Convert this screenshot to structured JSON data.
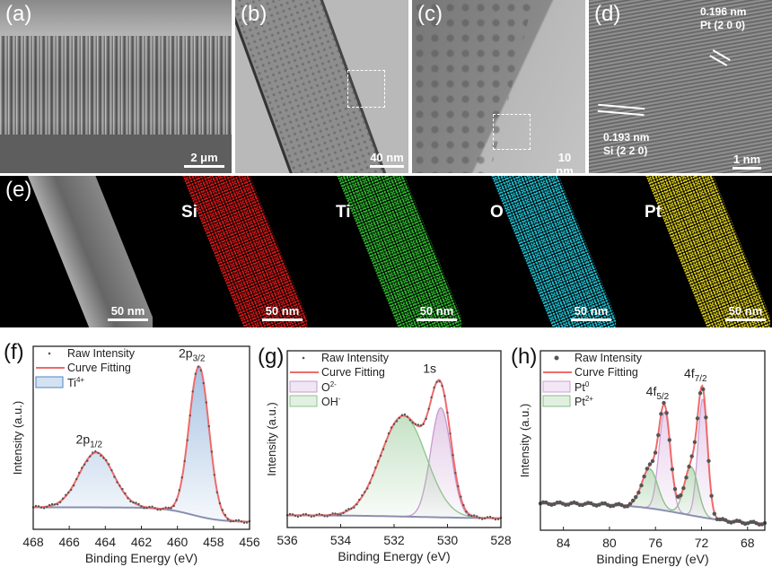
{
  "panels": {
    "a": {
      "label": "(a)",
      "scale": "2 μm"
    },
    "b": {
      "label": "(b)",
      "scale": "40 nm"
    },
    "c": {
      "label": "(c)",
      "scale": "10 nm"
    },
    "d": {
      "label": "(d)",
      "scale": "1 nm",
      "pt_spacing": "0.196 nm",
      "pt_plane": "Pt (2 0 0)",
      "si_spacing": "0.193 nm",
      "si_plane": "Si (2 2 0)"
    },
    "e": {
      "label": "(e)",
      "maps": [
        {
          "element": "",
          "scale": "50 nm",
          "color": "#d8d8d8"
        },
        {
          "element": "Si",
          "scale": "50 nm",
          "color": "#e01818"
        },
        {
          "element": "Ti",
          "scale": "50 nm",
          "color": "#2fbf2f"
        },
        {
          "element": "O",
          "scale": "50 nm",
          "color": "#1fc6d8"
        },
        {
          "element": "Pt",
          "scale": "50 nm",
          "color": "#e0d21c"
        }
      ]
    }
  },
  "chart_data": [
    {
      "id": "f",
      "type": "line",
      "panel_label": "(f)",
      "xlabel": "Binding Energy (eV)",
      "ylabel": "Intensity (a.u.)",
      "xlim": [
        468,
        456
      ],
      "ylim": [
        0,
        1
      ],
      "xticks": [
        468,
        466,
        464,
        462,
        460,
        458,
        456
      ],
      "baseline": {
        "high": 0.12,
        "low": 0.04,
        "step_center": 459.2,
        "step_width": 0.8
      },
      "components": [
        {
          "name": "Ti4+",
          "base": "Ti",
          "sup": "4+",
          "color": "#4f86c6",
          "peaks": [
            {
              "center": 458.8,
              "amp": 0.82,
              "sigma": 0.55
            },
            {
              "center": 464.5,
              "amp": 0.3,
              "sigma": 0.95
            }
          ]
        }
      ],
      "legend": {
        "raw": "Raw Intensity",
        "fit": "Curve Fitting"
      },
      "peak_labels": [
        {
          "x": 458.8,
          "base": "2p",
          "sub": "3/2"
        },
        {
          "x": 464.5,
          "base": "2p",
          "sub": "1/2"
        }
      ]
    },
    {
      "id": "g",
      "type": "line",
      "panel_label": "(g)",
      "xlabel": "Binding Energy (eV)",
      "ylabel": "Intensity (a.u.)",
      "xlim": [
        536,
        528
      ],
      "ylim": [
        0,
        1
      ],
      "xticks": [
        536,
        534,
        532,
        530,
        528
      ],
      "baseline": {
        "high": 0.07,
        "low": 0.05,
        "step_center": 531,
        "step_width": 1.5
      },
      "components": [
        {
          "name": "O2-",
          "base": "O",
          "sup": "2-",
          "color": "#c89ad0",
          "peaks": [
            {
              "center": 530.25,
              "amp": 0.62,
              "sigma": 0.38
            }
          ]
        },
        {
          "name": "OH-",
          "base": "OH",
          "sup": "-",
          "color": "#8cc48c",
          "peaks": [
            {
              "center": 531.65,
              "amp": 0.57,
              "sigma": 0.85
            }
          ]
        }
      ],
      "legend": {
        "raw": "Raw Intensity",
        "fit": "Curve Fitting"
      },
      "peak_labels": [
        {
          "x": 530.4,
          "base": "1s",
          "sub": ""
        }
      ]
    },
    {
      "id": "h",
      "type": "line",
      "panel_label": "(h)",
      "xlabel": "Binding Energy (eV)",
      "ylabel": "Intensity (a.u.)",
      "xlim": [
        86,
        66.5
      ],
      "ylim": [
        0,
        1
      ],
      "xticks": [
        84,
        80,
        76,
        72,
        68
      ],
      "baseline": {
        "high": 0.15,
        "low": 0.03,
        "step_center": 73.5,
        "step_width": 2.5
      },
      "components": [
        {
          "name": "Pt0",
          "base": "Pt",
          "sup": "0",
          "color": "#d0a0d8",
          "peaks": [
            {
              "center": 71.9,
              "amp": 0.66,
              "sigma": 0.42
            },
            {
              "center": 75.2,
              "amp": 0.55,
              "sigma": 0.5
            }
          ]
        },
        {
          "name": "Pt2+",
          "base": "Pt",
          "sup": "2+",
          "color": "#86be86",
          "peaks": [
            {
              "center": 72.9,
              "amp": 0.27,
              "sigma": 0.6
            },
            {
              "center": 76.5,
              "amp": 0.22,
              "sigma": 0.7
            }
          ]
        }
      ],
      "legend": {
        "raw": "Raw Intensity",
        "fit": "Curve Fitting"
      },
      "peak_labels": [
        {
          "x": 75.2,
          "base": "4f",
          "sub": "5/2"
        },
        {
          "x": 71.9,
          "base": "4f",
          "sub": "7/2"
        }
      ]
    }
  ]
}
